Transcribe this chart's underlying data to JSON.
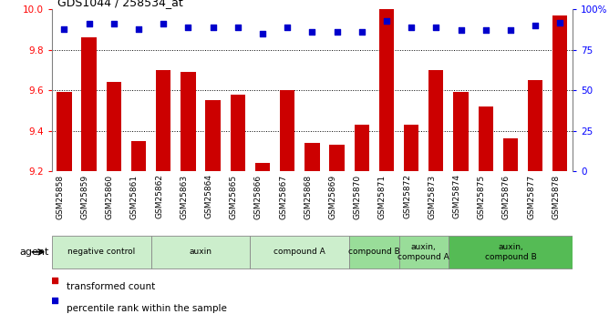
{
  "title": "GDS1044 / 258534_at",
  "samples": [
    "GSM25858",
    "GSM25859",
    "GSM25860",
    "GSM25861",
    "GSM25862",
    "GSM25863",
    "GSM25864",
    "GSM25865",
    "GSM25866",
    "GSM25867",
    "GSM25868",
    "GSM25869",
    "GSM25870",
    "GSM25871",
    "GSM25872",
    "GSM25873",
    "GSM25874",
    "GSM25875",
    "GSM25876",
    "GSM25877",
    "GSM25878"
  ],
  "bar_values": [
    9.59,
    9.86,
    9.64,
    9.35,
    9.7,
    9.69,
    9.55,
    9.58,
    9.24,
    9.6,
    9.34,
    9.33,
    9.43,
    10.0,
    9.43,
    9.7,
    9.59,
    9.52,
    9.36,
    9.65,
    9.97
  ],
  "pct_values": [
    88,
    91,
    91,
    88,
    91,
    89,
    89,
    89,
    85,
    89,
    86,
    86,
    86,
    93,
    89,
    89,
    87,
    87,
    87,
    90,
    92
  ],
  "ymin": 9.2,
  "ymax": 10.0,
  "yticks_left": [
    9.2,
    9.4,
    9.6,
    9.8,
    10.0
  ],
  "yticks_right": [
    0,
    25,
    50,
    75,
    100
  ],
  "ytick_labels_right": [
    "0",
    "25",
    "50",
    "75",
    "100%"
  ],
  "bar_color": "#cc0000",
  "dot_color": "#0000cc",
  "groups": [
    {
      "label": "negative control",
      "start": 0,
      "end": 3,
      "color": "#cceecc"
    },
    {
      "label": "auxin",
      "start": 4,
      "end": 7,
      "color": "#cceecc"
    },
    {
      "label": "compound A",
      "start": 8,
      "end": 11,
      "color": "#cceecc"
    },
    {
      "label": "compound B",
      "start": 12,
      "end": 13,
      "color": "#99dd99"
    },
    {
      "label": "auxin,\ncompound A",
      "start": 14,
      "end": 15,
      "color": "#99dd99"
    },
    {
      "label": "auxin,\ncompound B",
      "start": 16,
      "end": 20,
      "color": "#55bb55"
    }
  ]
}
